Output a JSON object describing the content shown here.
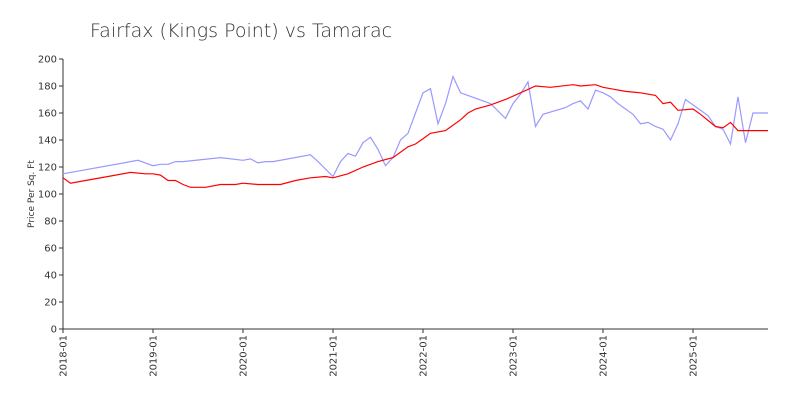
{
  "chart_data": {
    "type": "line",
    "title": "Fairfax (Kings Point) vs Tamarac",
    "ylabel": "Price Per Sq. Ft",
    "ylim": [
      0,
      200
    ],
    "yticks": [
      0,
      20,
      40,
      60,
      80,
      100,
      120,
      140,
      160,
      180,
      200
    ],
    "xlim": [
      "2018-01",
      "2025-11"
    ],
    "xticks": [
      "2018-01",
      "2019-01",
      "2020-01",
      "2021-01",
      "2022-01",
      "2023-01",
      "2024-01",
      "2025-01"
    ],
    "series": [
      {
        "color": "#9999ff",
        "x": [
          "2018-01",
          "2018-11",
          "2019-01",
          "2019-02",
          "2019-03",
          "2019-04",
          "2019-05",
          "2019-10",
          "2020-01",
          "2020-02",
          "2020-03",
          "2020-04",
          "2020-05",
          "2020-10",
          "2020-11",
          "2021-01",
          "2021-02",
          "2021-03",
          "2021-04",
          "2021-05",
          "2021-06",
          "2021-07",
          "2021-08",
          "2021-09",
          "2021-10",
          "2021-11",
          "2021-12",
          "2022-01",
          "2022-02",
          "2022-03",
          "2022-04",
          "2022-05",
          "2022-06",
          "2022-08",
          "2022-10",
          "2022-12",
          "2023-01",
          "2023-02",
          "2023-03",
          "2023-04",
          "2023-05",
          "2023-08",
          "2023-09",
          "2023-10",
          "2023-11",
          "2023-12",
          "2024-01",
          "2024-02",
          "2024-03",
          "2024-05",
          "2024-06",
          "2024-07",
          "2024-08",
          "2024-09",
          "2024-10",
          "2024-11",
          "2024-12",
          "2025-01",
          "2025-03",
          "2025-04",
          "2025-05",
          "2025-06",
          "2025-07",
          "2025-08",
          "2025-09",
          "2025-10",
          "2025-11"
        ],
        "values": [
          115,
          125,
          121,
          122,
          122,
          124,
          124,
          127,
          125,
          126,
          123,
          124,
          124,
          129,
          124,
          113,
          124,
          130,
          128,
          138,
          142,
          133,
          121,
          127,
          140,
          145,
          160,
          175,
          178,
          152,
          167,
          187,
          175,
          171,
          167,
          156,
          167,
          174,
          183,
          150,
          159,
          164,
          167,
          169,
          163,
          177,
          175,
          172,
          167,
          159,
          152,
          153,
          150,
          148,
          140,
          152,
          170,
          166,
          158,
          150,
          148,
          137,
          172,
          138,
          160,
          160,
          160
        ]
      },
      {
        "color": "#ff0000",
        "x": [
          "2018-01",
          "2018-02",
          "2018-04",
          "2018-07",
          "2018-10",
          "2018-12",
          "2019-01",
          "2019-02",
          "2019-03",
          "2019-04",
          "2019-05",
          "2019-06",
          "2019-08",
          "2019-10",
          "2019-12",
          "2020-01",
          "2020-03",
          "2020-06",
          "2020-08",
          "2020-10",
          "2020-12",
          "2021-01",
          "2021-03",
          "2021-05",
          "2021-07",
          "2021-09",
          "2021-11",
          "2021-12",
          "2022-01",
          "2022-02",
          "2022-04",
          "2022-06",
          "2022-07",
          "2022-08",
          "2022-10",
          "2022-12",
          "2023-02",
          "2023-04",
          "2023-06",
          "2023-09",
          "2023-10",
          "2023-12",
          "2024-01",
          "2024-02",
          "2024-04",
          "2024-06",
          "2024-08",
          "2024-09",
          "2024-10",
          "2024-11",
          "2025-01",
          "2025-02",
          "2025-04",
          "2025-05",
          "2025-06",
          "2025-07",
          "2025-09",
          "2025-11"
        ],
        "values": [
          112,
          108,
          110,
          113,
          116,
          115,
          115,
          114,
          110,
          110,
          107,
          105,
          105,
          107,
          107,
          108,
          107,
          107,
          110,
          112,
          113,
          112,
          115,
          120,
          124,
          127,
          135,
          137,
          141,
          145,
          147,
          155,
          160,
          163,
          166,
          170,
          175,
          180,
          179,
          181,
          180,
          181,
          179,
          178,
          176,
          175,
          173,
          167,
          168,
          162,
          163,
          159,
          150,
          149,
          153,
          147,
          147,
          147
        ]
      }
    ]
  }
}
